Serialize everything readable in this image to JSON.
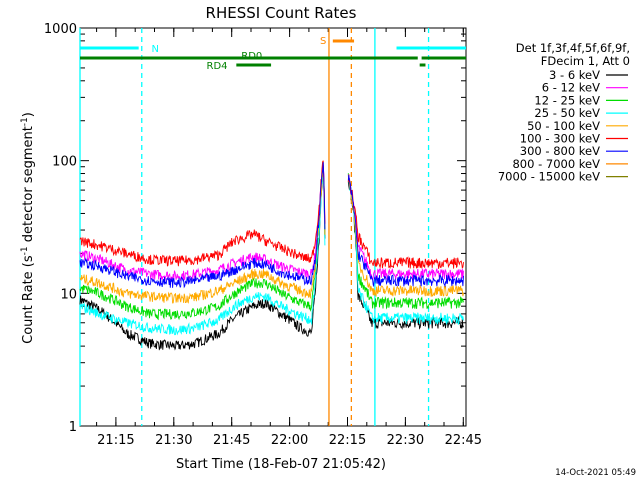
{
  "chart_data": {
    "type": "line",
    "title": "RHESSI Count Rates",
    "xlabel": "Start Time (18-Feb-07 21:05:42)",
    "ylabel_main": "Count Rate (s",
    "ylabel_sup1": "-1",
    "ylabel_mid": " detector segment",
    "ylabel_sup2": "-1",
    "ylabel_end": ")",
    "y_scale": "log",
    "ylim": [
      1,
      1000
    ],
    "xlim_minutes": [
      0,
      100
    ],
    "x_ticks": [
      {
        "m": 9.3,
        "label": "21:15"
      },
      {
        "m": 24.3,
        "label": "21:30"
      },
      {
        "m": 39.3,
        "label": "21:45"
      },
      {
        "m": 54.3,
        "label": "22:00"
      },
      {
        "m": 69.3,
        "label": "22:15"
      },
      {
        "m": 84.3,
        "label": "22:30"
      },
      {
        "m": 99.3,
        "label": "22:45"
      }
    ],
    "y_ticks": [
      {
        "v": 1,
        "label": "1"
      },
      {
        "v": 10,
        "label": "10"
      },
      {
        "v": 100,
        "label": "100"
      },
      {
        "v": 1000,
        "label": "1000"
      }
    ],
    "legend": {
      "header1": "Det 1f,3f,4f,5f,6f,9f,",
      "header2": "FDecim 1, Att 0",
      "position": "right"
    },
    "series": [
      {
        "name": "3 - 6 keV",
        "color": "#000000",
        "points": [
          [
            0,
            9
          ],
          [
            5,
            7.5
          ],
          [
            12,
            5
          ],
          [
            18,
            4.2
          ],
          [
            25,
            4
          ],
          [
            30,
            4.2
          ],
          [
            36,
            5
          ],
          [
            40,
            6.5
          ],
          [
            45,
            8
          ],
          [
            48,
            8.5
          ],
          [
            52,
            7
          ],
          [
            57,
            5.5
          ],
          [
            60,
            5
          ],
          [
            61,
            10
          ],
          [
            62,
            25
          ],
          [
            63,
            90
          ],
          [
            63.5,
            18
          ],
          [
            64,
            0
          ]
        ]
      },
      {
        "name": "6 - 12 keV",
        "color": "#ff00ff",
        "points": [
          [
            0,
            20
          ],
          [
            5,
            18
          ],
          [
            12,
            15
          ],
          [
            18,
            14
          ],
          [
            25,
            13.5
          ],
          [
            30,
            14
          ],
          [
            36,
            15
          ],
          [
            40,
            17
          ],
          [
            45,
            19
          ],
          [
            48,
            18
          ],
          [
            52,
            16
          ],
          [
            57,
            14.5
          ],
          [
            60,
            14
          ],
          [
            61,
            20
          ],
          [
            62,
            40
          ],
          [
            63,
            95
          ],
          [
            63.5,
            25
          ],
          [
            64,
            0
          ]
        ]
      },
      {
        "name": "12 - 25 keV",
        "color": "#00dd00",
        "points": [
          [
            0,
            11
          ],
          [
            5,
            10
          ],
          [
            12,
            8
          ],
          [
            18,
            7
          ],
          [
            25,
            7
          ],
          [
            30,
            7.2
          ],
          [
            36,
            8
          ],
          [
            40,
            10
          ],
          [
            45,
            12
          ],
          [
            48,
            12
          ],
          [
            52,
            10
          ],
          [
            57,
            8.5
          ],
          [
            60,
            8
          ],
          [
            61,
            14
          ],
          [
            62,
            30
          ],
          [
            63,
            85
          ],
          [
            63.5,
            20
          ],
          [
            64,
            0
          ]
        ]
      },
      {
        "name": "25 - 50 keV",
        "color": "#00ffff",
        "points": [
          [
            0,
            8
          ],
          [
            5,
            7
          ],
          [
            12,
            6
          ],
          [
            18,
            5.5
          ],
          [
            25,
            5.3
          ],
          [
            30,
            5.5
          ],
          [
            36,
            6.3
          ],
          [
            40,
            8
          ],
          [
            45,
            9.5
          ],
          [
            48,
            9.5
          ],
          [
            52,
            8
          ],
          [
            57,
            6.8
          ],
          [
            60,
            6.3
          ],
          [
            61,
            12
          ],
          [
            62,
            28
          ],
          [
            63,
            80
          ],
          [
            63.5,
            18
          ],
          [
            64,
            0
          ]
        ]
      },
      {
        "name": "50 - 100 keV",
        "color": "#ffaa00",
        "points": [
          [
            0,
            13
          ],
          [
            5,
            12
          ],
          [
            12,
            10
          ],
          [
            18,
            9.5
          ],
          [
            25,
            9.2
          ],
          [
            30,
            9.4
          ],
          [
            36,
            10.5
          ],
          [
            40,
            12
          ],
          [
            45,
            14
          ],
          [
            48,
            14
          ],
          [
            52,
            12
          ],
          [
            57,
            10.5
          ],
          [
            60,
            10
          ],
          [
            61,
            16
          ],
          [
            62,
            33
          ],
          [
            63,
            88
          ],
          [
            63.5,
            22
          ],
          [
            64,
            0
          ]
        ]
      },
      {
        "name": "100 - 300 keV",
        "color": "#ff0000",
        "points": [
          [
            0,
            25
          ],
          [
            5,
            23
          ],
          [
            12,
            20
          ],
          [
            18,
            18
          ],
          [
            25,
            17.5
          ],
          [
            30,
            18
          ],
          [
            36,
            19.5
          ],
          [
            40,
            25
          ],
          [
            45,
            28
          ],
          [
            48,
            25
          ],
          [
            52,
            22
          ],
          [
            57,
            19
          ],
          [
            60,
            18
          ],
          [
            61,
            25
          ],
          [
            62,
            45
          ],
          [
            63,
            98
          ],
          [
            63.5,
            28
          ],
          [
            64,
            0
          ]
        ]
      },
      {
        "name": "300 - 800 keV",
        "color": "#0000ff",
        "points": [
          [
            0,
            17
          ],
          [
            5,
            16
          ],
          [
            12,
            13.5
          ],
          [
            18,
            12.5
          ],
          [
            25,
            12
          ],
          [
            30,
            12.5
          ],
          [
            36,
            13.5
          ],
          [
            40,
            15
          ],
          [
            45,
            17
          ],
          [
            48,
            16.5
          ],
          [
            52,
            14.5
          ],
          [
            57,
            13
          ],
          [
            60,
            12.5
          ],
          [
            61,
            18
          ],
          [
            62,
            38
          ],
          [
            63,
            92
          ],
          [
            63.5,
            24
          ],
          [
            64,
            0
          ]
        ]
      },
      {
        "name": "800 - 7000 keV",
        "color": "#ff8800",
        "points": []
      },
      {
        "name": "7000 - 15000 keV",
        "color": "#808000",
        "points": []
      }
    ],
    "after_gap": {
      "start": 69.5,
      "levels": {
        "3 - 6 keV": 6,
        "6 - 12 keV": 14,
        "12 - 25 keV": 8.5,
        "25 - 50 keV": 6.5,
        "50 - 100 keV": 10.5,
        "100 - 300 keV": 17,
        "300 - 800 keV": 12.5
      },
      "peak": 75
    },
    "annotations": {
      "N_label": "N",
      "S_label": "S",
      "RD0_label": "RD0",
      "RD4_label": "RD4"
    },
    "vlines": [
      {
        "m": 0,
        "color": "#00ffff",
        "style": "solid"
      },
      {
        "m": 16,
        "color": "#00ffff",
        "style": "dashed"
      },
      {
        "m": 64.5,
        "color": "#ff8800",
        "style": "solid"
      },
      {
        "m": 70.3,
        "color": "#ff8800",
        "style": "dashed"
      },
      {
        "m": 76.4,
        "color": "#00ffff",
        "style": "solid"
      },
      {
        "m": 90.3,
        "color": "#00ffff",
        "style": "dashed"
      }
    ],
    "timestamp": "14-Oct-2021 05:49"
  }
}
